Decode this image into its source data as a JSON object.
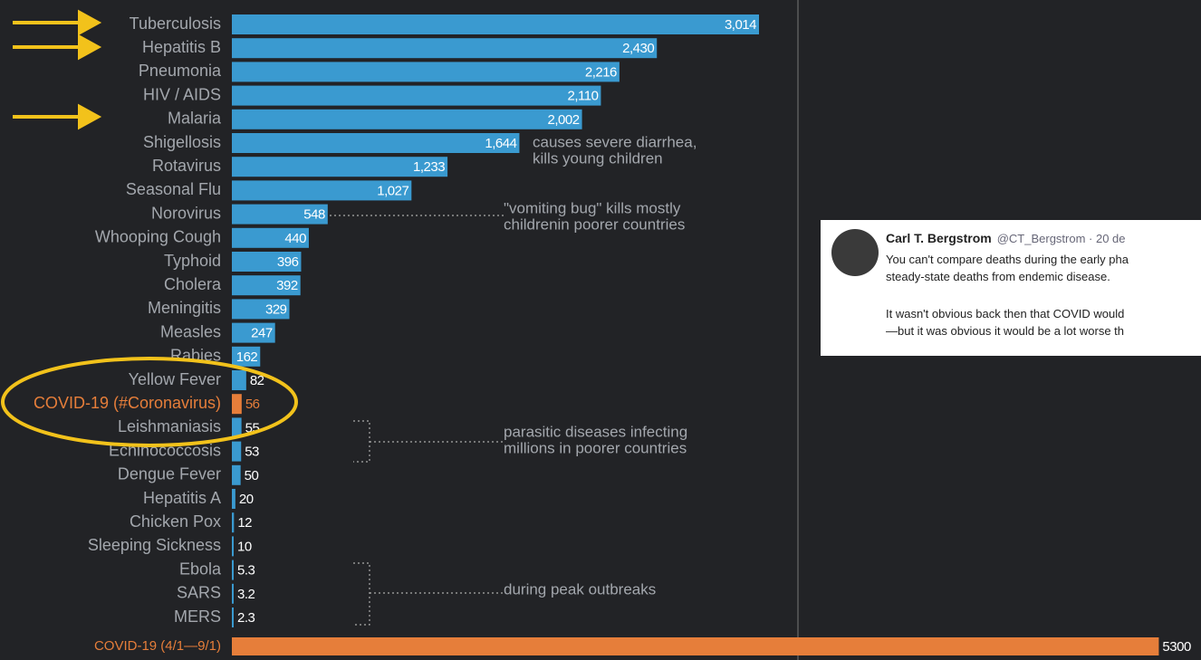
{
  "chart_data": {
    "type": "hbar",
    "categories": [
      "Tuberculosis",
      "Hepatitis B",
      "Pneumonia",
      "HIV / AIDS",
      "Malaria",
      "Shigellosis",
      "Rotavirus",
      "Seasonal Flu",
      "Norovirus",
      "Whooping Cough",
      "Typhoid",
      "Cholera",
      "Meningitis",
      "Measles",
      "Rabies",
      "Yellow Fever",
      "COVID-19 (#Coronavirus)",
      "Leishmaniasis",
      "Echinococcosis",
      "Dengue Fever",
      "Hepatitis A",
      "Chicken Pox",
      "Sleeping Sickness",
      "Ebola",
      "SARS",
      "MERS",
      "COVID-19 (4/1—9/1)"
    ],
    "values": [
      3014,
      2430,
      2216,
      2110,
      2002,
      1644,
      1233,
      1027,
      548,
      440,
      396,
      392,
      329,
      247,
      162,
      82,
      56,
      55,
      53,
      50,
      20,
      12,
      10,
      5.3,
      3.2,
      2.3,
      5300
    ],
    "value_labels": [
      "3,014",
      "2,430",
      "2,216",
      "2,110",
      "2,002",
      "1,644",
      "1,233",
      "1,027",
      "548",
      "440",
      "396",
      "392",
      "329",
      "247",
      "162",
      "82",
      "56",
      "55",
      "53",
      "50",
      "20",
      "12",
      "10",
      "5.3",
      "3.2",
      "2.3",
      "5300"
    ],
    "color": "#3a9ad0",
    "colors": [
      "#3a9ad0",
      "#3a9ad0",
      "#3a9ad0",
      "#3a9ad0",
      "#3a9ad0",
      "#3a9ad0",
      "#3a9ad0",
      "#3a9ad0",
      "#3a9ad0",
      "#3a9ad0",
      "#3a9ad0",
      "#3a9ad0",
      "#3a9ad0",
      "#3a9ad0",
      "#3a9ad0",
      "#3a9ad0",
      "#e67e3a",
      "#3a9ad0",
      "#3a9ad0",
      "#3a9ad0",
      "#3a9ad0",
      "#3a9ad0",
      "#3a9ad0",
      "#3a9ad0",
      "#3a9ad0",
      "#3a9ad0",
      "#e67e3a"
    ],
    "annotations": [
      {
        "lines": [
          "causes severe diarrhea,",
          "kills young children"
        ]
      },
      {
        "lines": [
          "\"vomiting bug\" kills mostly",
          "childrenin poorer countries"
        ]
      },
      {
        "lines": [
          "parasitic diseases infecting",
          "millions in poorer countries"
        ]
      },
      {
        "lines": [
          "during peak outbreaks"
        ]
      }
    ]
  },
  "tweet": {
    "name": "Carl T. Bergstrom",
    "handle": "@CT_Bergstrom · 20 de",
    "lines": [
      "You can't compare deaths during the early pha",
      "steady-state deaths from endemic disease.",
      "It wasn't obvious back then that COVID would",
      "—but it was obvious it would be a lot worse th"
    ]
  }
}
